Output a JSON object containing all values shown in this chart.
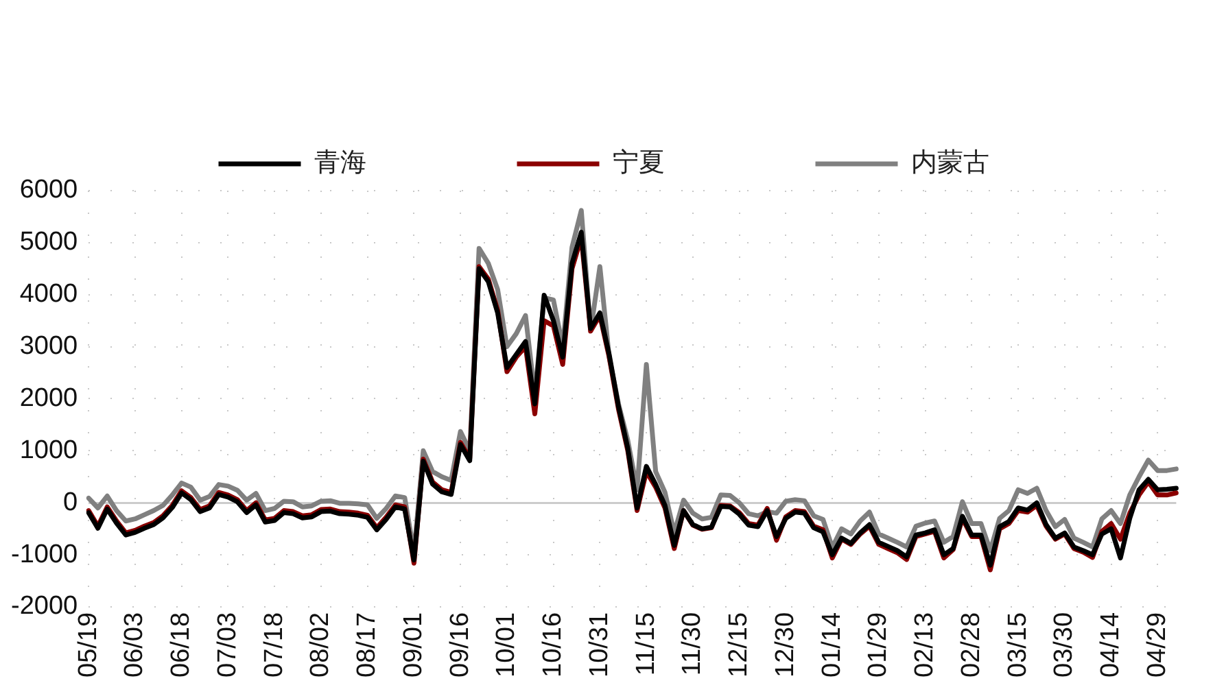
{
  "chart_data": {
    "type": "line",
    "categories": [
      "05/19",
      null,
      null,
      null,
      null,
      "06/03",
      null,
      null,
      null,
      null,
      "06/18",
      null,
      null,
      null,
      null,
      "07/03",
      null,
      null,
      null,
      null,
      "07/18",
      null,
      null,
      null,
      null,
      "08/02",
      null,
      null,
      null,
      null,
      "08/17",
      null,
      null,
      null,
      null,
      "09/01",
      null,
      null,
      null,
      null,
      "09/16",
      null,
      null,
      null,
      null,
      "10/01",
      null,
      null,
      null,
      null,
      "10/16",
      null,
      null,
      null,
      null,
      "10/31",
      null,
      null,
      null,
      null,
      "11/15",
      null,
      null,
      null,
      null,
      "11/30",
      null,
      null,
      null,
      null,
      "12/15",
      null,
      null,
      null,
      null,
      "12/30",
      null,
      null,
      null,
      null,
      "01/14",
      null,
      null,
      null,
      null,
      "01/29",
      null,
      null,
      null,
      null,
      "02/13",
      null,
      null,
      null,
      null,
      "02/28",
      null,
      null,
      null,
      null,
      "03/15",
      null,
      null,
      null,
      null,
      "03/30",
      null,
      null,
      null,
      null,
      "04/14",
      null,
      null,
      null,
      null,
      "04/29",
      null,
      null
    ],
    "series": [
      {
        "name": "青海",
        "color": "#000000",
        "values": [
          -190,
          -490,
          -120,
          -390,
          -620,
          -570,
          -490,
          -420,
          -290,
          -90,
          190,
          60,
          -170,
          -100,
          160,
          110,
          20,
          -190,
          -40,
          -370,
          -340,
          -190,
          -210,
          -290,
          -270,
          -170,
          -160,
          -210,
          -220,
          -240,
          -280,
          -520,
          -320,
          -80,
          -120,
          -1100,
          800,
          360,
          210,
          160,
          1120,
          810,
          4500,
          4250,
          3650,
          2600,
          2850,
          3100,
          1900,
          3990,
          3500,
          2800,
          4600,
          5200,
          3350,
          3650,
          2850,
          1850,
          1050,
          -100,
          700,
          350,
          -50,
          -820,
          -150,
          -420,
          -500,
          -470,
          -70,
          -80,
          -220,
          -430,
          -460,
          -150,
          -650,
          -300,
          -180,
          -200,
          -480,
          -560,
          -1000,
          -680,
          -780,
          -580,
          -420,
          -760,
          -840,
          -920,
          -1040,
          -620,
          -580,
          -520,
          -1000,
          -880,
          -260,
          -620,
          -620,
          -1200,
          -460,
          -360,
          -100,
          -140,
          0,
          -420,
          -680,
          -580,
          -850,
          -920,
          -1000,
          -600,
          -500,
          -1060,
          -300,
          250,
          450,
          250,
          260,
          280
        ]
      },
      {
        "name": "宁夏",
        "color": "#8b0000",
        "values": [
          -150,
          -450,
          -80,
          -350,
          -580,
          -530,
          -450,
          -380,
          -250,
          -50,
          230,
          100,
          -130,
          -60,
          200,
          150,
          60,
          -150,
          0,
          -330,
          -300,
          -150,
          -170,
          -250,
          -230,
          -130,
          -120,
          -170,
          -180,
          -200,
          -240,
          -480,
          -280,
          -40,
          -80,
          -1160,
          840,
          400,
          250,
          200,
          1160,
          850,
          4540,
          4300,
          3700,
          2520,
          2800,
          3000,
          1710,
          3500,
          3400,
          2660,
          4500,
          5100,
          3300,
          3600,
          2800,
          1800,
          1000,
          -150,
          600,
          300,
          -100,
          -880,
          -150,
          -430,
          -510,
          -480,
          -50,
          -60,
          -190,
          -400,
          -430,
          -110,
          -720,
          -270,
          -150,
          -170,
          -450,
          -520,
          -1060,
          -700,
          -800,
          -600,
          -450,
          -800,
          -880,
          -960,
          -1090,
          -650,
          -600,
          -550,
          -1060,
          -900,
          -300,
          -650,
          -650,
          -1290,
          -500,
          -400,
          -150,
          -180,
          -50,
          -450,
          -700,
          -600,
          -880,
          -950,
          -1050,
          -550,
          -400,
          -700,
          -200,
          150,
          400,
          150,
          150,
          190
        ]
      },
      {
        "name": "内蒙古",
        "color": "#808080",
        "values": [
          90,
          -100,
          130,
          -150,
          -350,
          -310,
          -230,
          -150,
          -50,
          150,
          380,
          300,
          50,
          120,
          350,
          320,
          240,
          50,
          180,
          -150,
          -110,
          30,
          20,
          -80,
          -60,
          30,
          40,
          -10,
          -10,
          -20,
          -40,
          -300,
          -110,
          130,
          100,
          -960,
          1000,
          600,
          500,
          430,
          1370,
          1000,
          4890,
          4600,
          4100,
          3000,
          3250,
          3600,
          2070,
          3940,
          3900,
          3000,
          4910,
          5620,
          3300,
          4540,
          2800,
          1900,
          1200,
          250,
          2660,
          600,
          200,
          -580,
          50,
          -200,
          -310,
          -280,
          150,
          140,
          0,
          -210,
          -250,
          -170,
          -200,
          30,
          60,
          40,
          -250,
          -320,
          -860,
          -500,
          -600,
          -350,
          -180,
          -600,
          -680,
          -760,
          -850,
          -450,
          -390,
          -350,
          -760,
          -650,
          20,
          -400,
          -400,
          -920,
          -300,
          -150,
          250,
          180,
          280,
          -150,
          -460,
          -320,
          -680,
          -760,
          -850,
          -310,
          -150,
          -400,
          150,
          500,
          820,
          620,
          620,
          650
        ]
      }
    ],
    "ylim": [
      -2000,
      6000
    ],
    "yticks": [
      -2000,
      -1000,
      0,
      1000,
      2000,
      3000,
      4000,
      5000,
      6000
    ],
    "grid": true,
    "legend": "top",
    "marker": "none",
    "line_style": "solid"
  }
}
